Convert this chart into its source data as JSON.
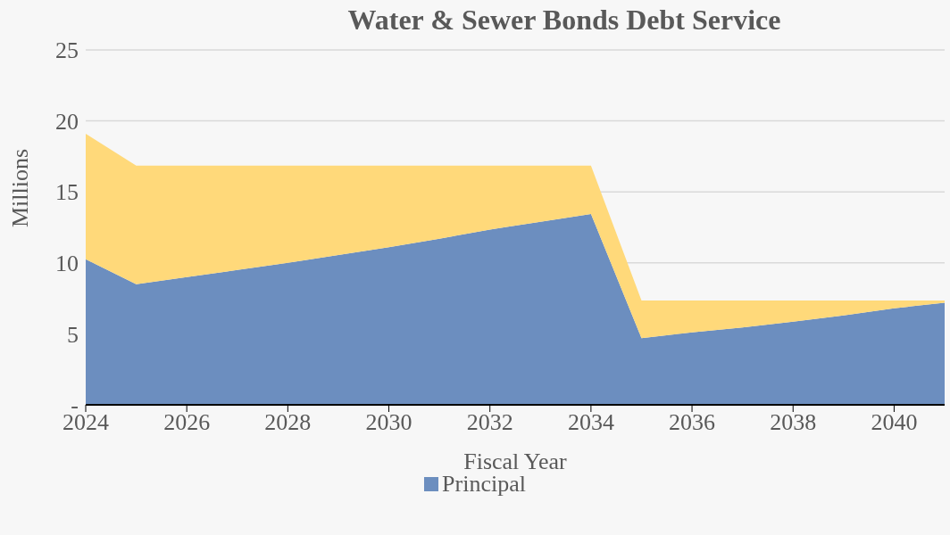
{
  "chart_data": {
    "type": "area",
    "title": "Water & Sewer Bonds Debt Service",
    "xlabel": "Fiscal Year",
    "ylabel": "Millions",
    "stacked": true,
    "x": [
      2024,
      2025,
      2026,
      2027,
      2028,
      2029,
      2030,
      2031,
      2032,
      2033,
      2034,
      2035,
      2036,
      2037,
      2038,
      2039,
      2040,
      2041
    ],
    "series": [
      {
        "name": "Principal",
        "color": "#6c8ebf",
        "values": [
          10.25,
          8.5,
          9.0,
          9.5,
          10.0,
          10.55,
          11.1,
          11.7,
          12.35,
          12.9,
          13.45,
          4.7,
          5.1,
          5.45,
          5.85,
          6.3,
          6.8,
          7.2
        ]
      },
      {
        "color": "#ffd97a",
        "values": [
          8.85,
          8.35,
          7.85,
          7.35,
          6.85,
          6.3,
          5.75,
          5.15,
          4.5,
          3.95,
          3.4,
          2.65,
          2.25,
          1.9,
          1.5,
          1.05,
          0.55,
          0.15
        ]
      }
    ],
    "xlim": [
      2024,
      2041
    ],
    "xticks": [
      2024,
      2026,
      2028,
      2030,
      2032,
      2034,
      2036,
      2038,
      2040
    ],
    "ylim": [
      0,
      25
    ],
    "yticks": [
      {
        "value": 0,
        "label": "-"
      },
      5,
      10,
      15,
      20,
      25
    ],
    "grid": "y",
    "legend": "bottom"
  }
}
